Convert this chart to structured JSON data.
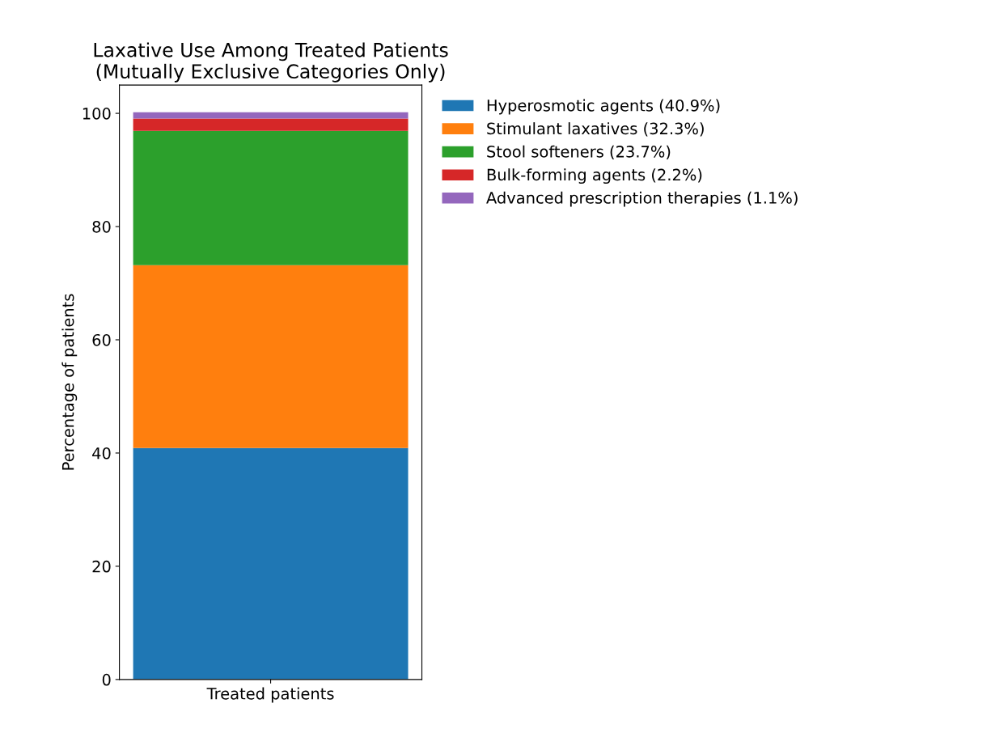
{
  "chart_data": {
    "type": "bar",
    "stacked": true,
    "title": "Laxative Use Among Treated Patients\n(Mutually Exclusive Categories Only)",
    "ylabel": "Percentage of patients",
    "categories": [
      "Treated patients"
    ],
    "series": [
      {
        "name": "Hyperosmotic agents (40.9%)",
        "color": "#1f77b4",
        "values": [
          40.9
        ]
      },
      {
        "name": "Stimulant laxatives (32.3%)",
        "color": "#ff7f0e",
        "values": [
          32.3
        ]
      },
      {
        "name": "Stool softeners (23.7%)",
        "color": "#2ca02c",
        "values": [
          23.7
        ]
      },
      {
        "name": "Bulk-forming agents (2.2%)",
        "color": "#d62728",
        "values": [
          2.2
        ]
      },
      {
        "name": "Advanced prescription therapies (1.1%)",
        "color": "#9467bd",
        "values": [
          1.1
        ]
      }
    ],
    "ylim": [
      0,
      105
    ],
    "yticks": [
      0,
      20,
      40,
      60,
      80,
      100
    ],
    "grid": false,
    "legend": "top right"
  }
}
